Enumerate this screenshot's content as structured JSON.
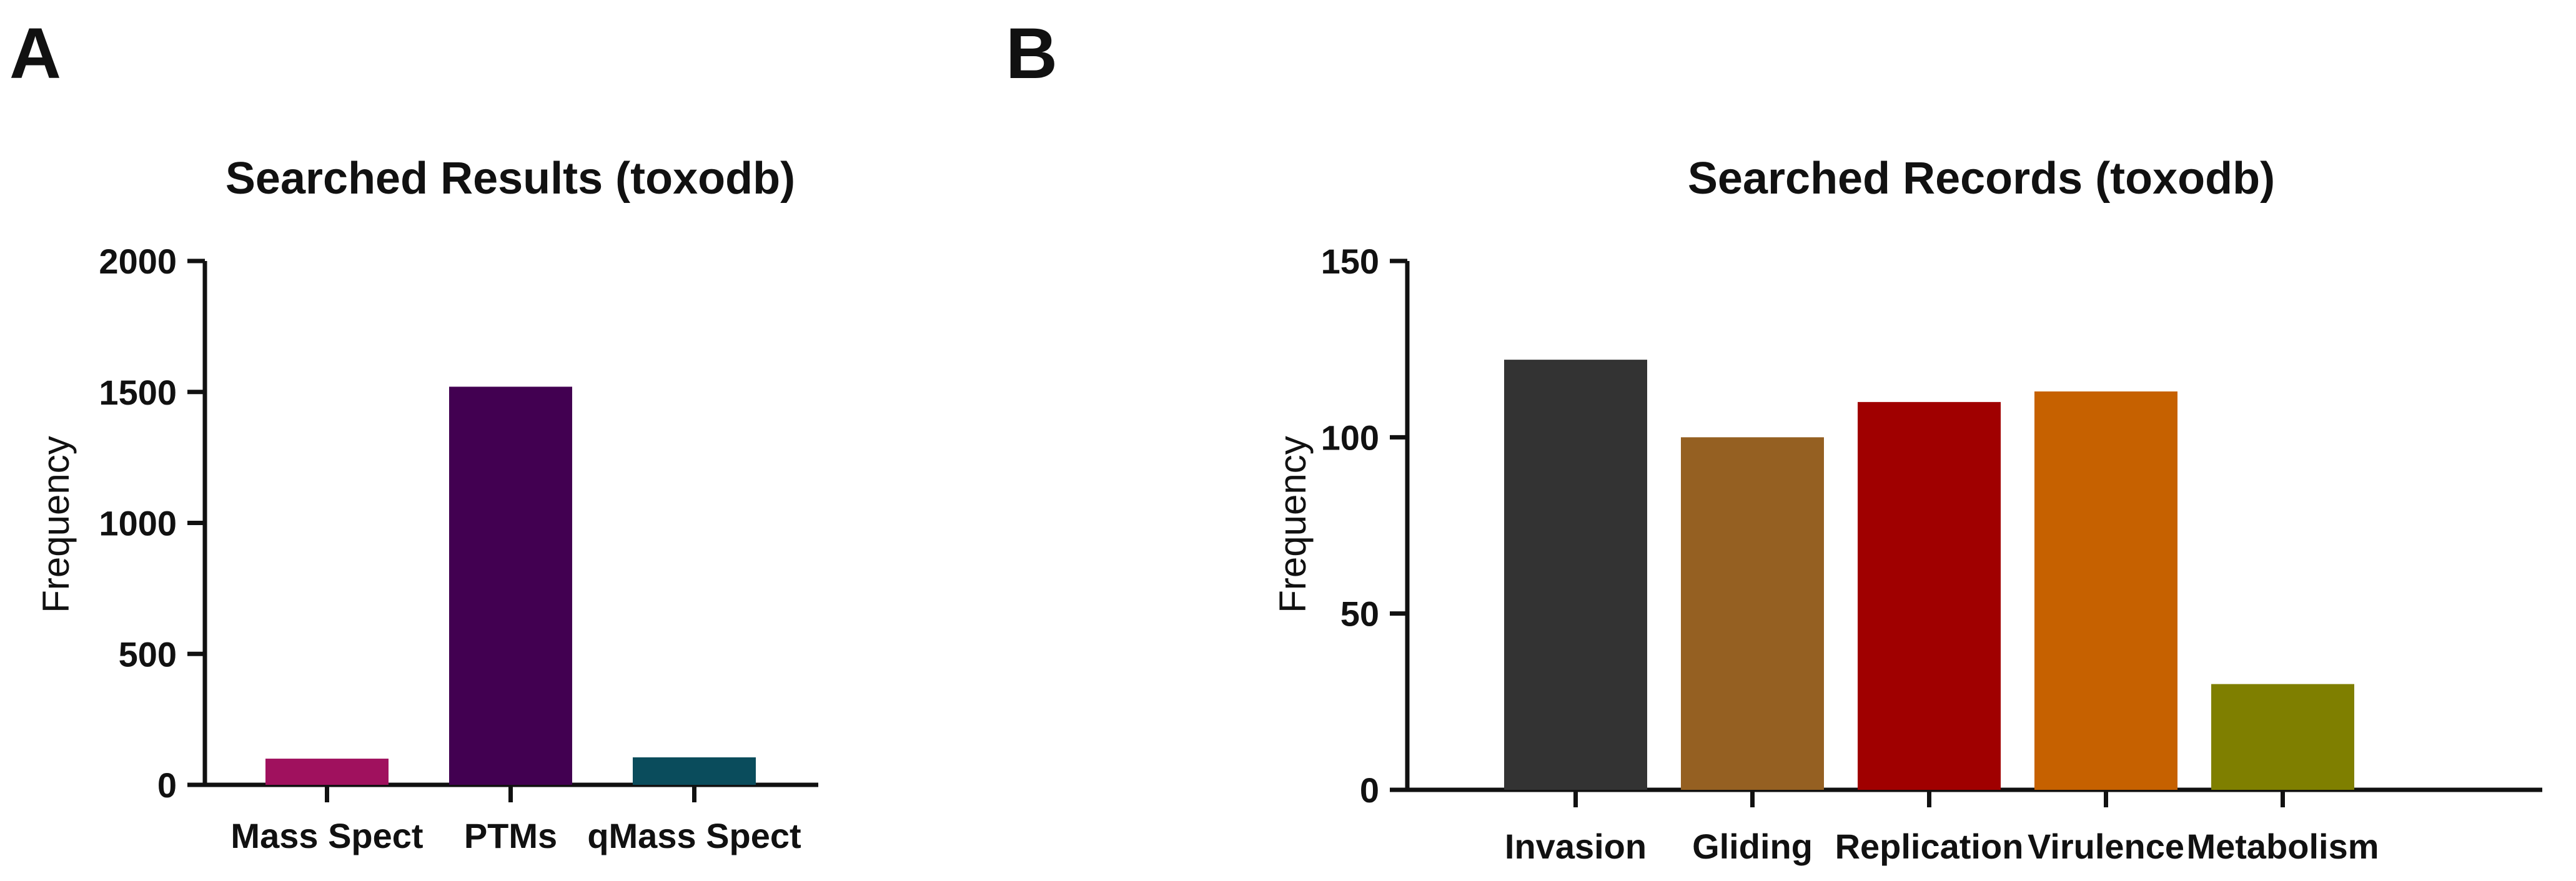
{
  "panels": [
    {
      "label": "A",
      "chart_data": {
        "type": "bar",
        "title": "Searched Results (toxodb)",
        "xlabel": "",
        "ylabel": "Frequency",
        "ylim": [
          0,
          2000
        ],
        "yticks": [
          0,
          500,
          1000,
          1500,
          2000
        ],
        "categories": [
          "Mass Spect",
          "PTMs",
          "qMass Spect"
        ],
        "values": [
          100,
          1520,
          105
        ],
        "colors": [
          "#a0115e",
          "#420051",
          "#0a4c5c"
        ],
        "legend": "none",
        "grid": false
      }
    },
    {
      "label": "B",
      "chart_data": {
        "type": "bar",
        "title": "Searched Records (toxodb)",
        "xlabel": "",
        "ylabel": "Frequency",
        "ylim": [
          0,
          150
        ],
        "yticks": [
          0,
          50,
          100,
          150
        ],
        "categories": [
          "Invasion",
          "Gliding",
          "Replication",
          "Virulence",
          "Metabolism"
        ],
        "values": [
          122,
          100,
          110,
          113,
          30
        ],
        "colors": [
          "#333333",
          "#956022",
          "#a00000",
          "#c66100",
          "#7f7f00"
        ],
        "legend": "none",
        "grid": false
      }
    }
  ]
}
